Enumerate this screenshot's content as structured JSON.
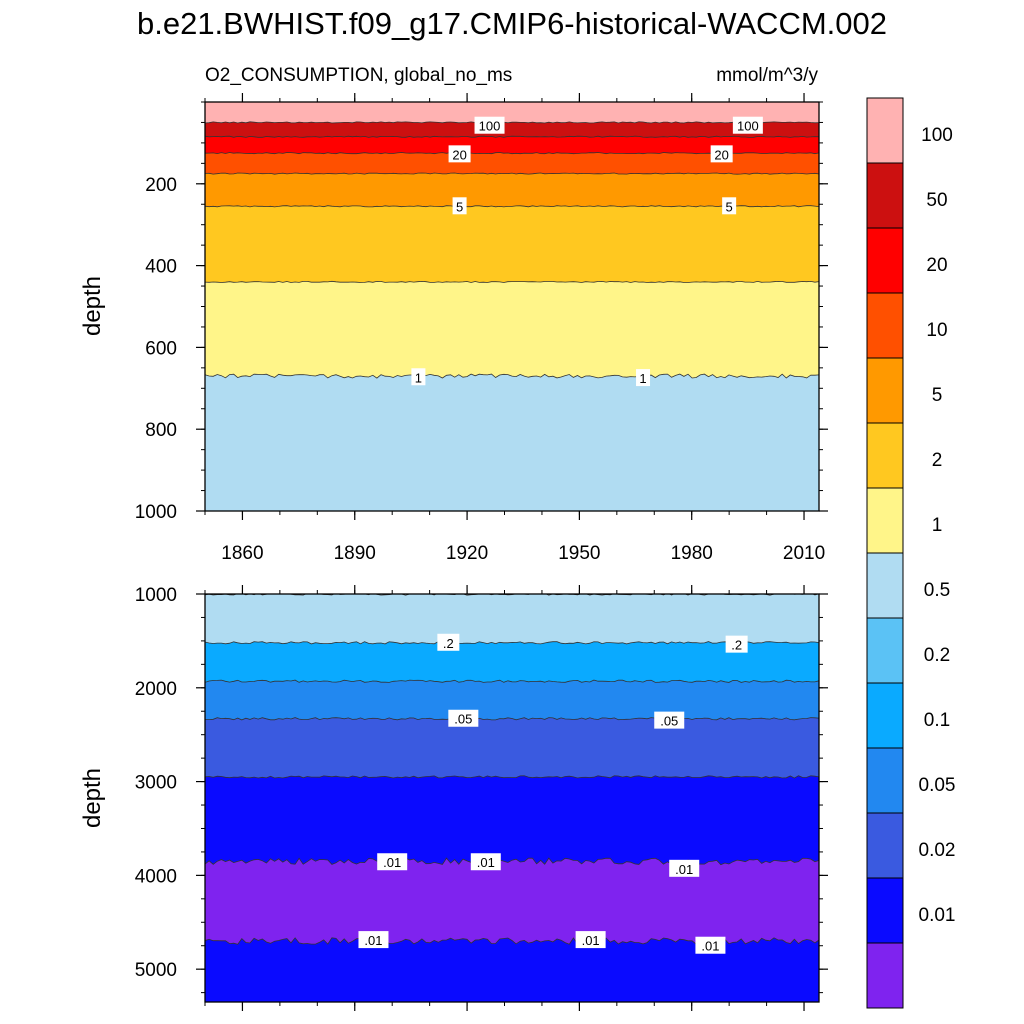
{
  "figure": {
    "title": "b.e21.BWHIST.f09_g17.CMIP6-historical-WACCM.002",
    "left_string": "O2_CONSUMPTION, global_no_ms",
    "right_string": "mmol/m^3/y"
  },
  "colorbar": {
    "levels": [
      "100",
      "50",
      "20",
      "10",
      "5",
      "2",
      "1",
      "0.5",
      "0.2",
      "0.1",
      "0.05",
      "0.02",
      "0.01"
    ],
    "colors": [
      "#FFB2B2",
      "#CC1010",
      "#FF0000",
      "#FF5000",
      "#FF9900",
      "#FFC820",
      "#FFF589",
      "#B0DCF2",
      "#5BC2F5",
      "#0AAAFF",
      "#2288F0",
      "#3A5AE0",
      "#0A0AFF",
      "#7F23EF"
    ]
  },
  "chart_data": [
    {
      "type": "heatmap",
      "panel": "upper",
      "title": "",
      "xlabel": "",
      "ylabel": "depth",
      "xlim": [
        1850,
        2014
      ],
      "ylim": [
        1000,
        0
      ],
      "x_ticks": [
        "1860",
        "1890",
        "1920",
        "1950",
        "1980",
        "2010"
      ],
      "y_ticks": [
        "200",
        "400",
        "600",
        "800",
        "1000"
      ],
      "contour_levels": [
        100,
        50,
        20,
        10,
        5,
        2,
        1,
        0.5
      ],
      "band_boundaries_depth": [
        {
          "level": 100,
          "depth": 50
        },
        {
          "level": 50,
          "depth": 85
        },
        {
          "level": 20,
          "depth": 125
        },
        {
          "level": 10,
          "depth": 175
        },
        {
          "level": 5,
          "depth": 255
        },
        {
          "level": 2,
          "depth": 440
        },
        {
          "level": 1,
          "depth": 670
        }
      ],
      "contour_labels": [
        {
          "text": "100",
          "x": 1926,
          "depth": 58
        },
        {
          "text": "100",
          "x": 1995,
          "depth": 58
        },
        {
          "text": "20",
          "x": 1918,
          "depth": 128
        },
        {
          "text": "20",
          "x": 1988,
          "depth": 128
        },
        {
          "text": "5",
          "x": 1918,
          "depth": 255
        },
        {
          "text": "5",
          "x": 1990,
          "depth": 255
        },
        {
          "text": "1",
          "x": 1907,
          "depth": 673
        },
        {
          "text": "1",
          "x": 1967,
          "depth": 675
        }
      ]
    },
    {
      "type": "heatmap",
      "panel": "lower",
      "title": "",
      "xlabel": "",
      "ylabel": "depth",
      "xlim": [
        1850,
        2014
      ],
      "ylim": [
        5350,
        1000
      ],
      "x_ticks": [],
      "y_ticks": [
        "1000",
        "2000",
        "3000",
        "4000",
        "5000"
      ],
      "contour_levels": [
        0.5,
        0.2,
        0.1,
        0.05,
        0.02,
        0.01
      ],
      "band_boundaries_depth": [
        {
          "level": 0.5,
          "depth": 1000
        },
        {
          "level": 0.2,
          "depth": 1520
        },
        {
          "level": 0.1,
          "depth": 1930
        },
        {
          "level": 0.05,
          "depth": 2330
        },
        {
          "level": 0.02,
          "depth": 2950
        },
        {
          "level": 0.01,
          "depth": 3850
        },
        {
          "level": 0.01,
          "depth": 4700
        }
      ],
      "contour_labels": [
        {
          "text": ".2",
          "x": 1915,
          "depth": 1520
        },
        {
          "text": ".2",
          "x": 1992,
          "depth": 1540
        },
        {
          "text": ".05",
          "x": 1919,
          "depth": 2330
        },
        {
          "text": ".05",
          "x": 1974,
          "depth": 2350
        },
        {
          "text": ".01",
          "x": 1900,
          "depth": 3860
        },
        {
          "text": ".01",
          "x": 1925,
          "depth": 3860
        },
        {
          "text": ".01",
          "x": 1978,
          "depth": 3930
        },
        {
          "text": ".01",
          "x": 1895,
          "depth": 4690
        },
        {
          "text": ".01",
          "x": 1953,
          "depth": 4690
        },
        {
          "text": ".01",
          "x": 1985,
          "depth": 4750
        }
      ]
    }
  ]
}
